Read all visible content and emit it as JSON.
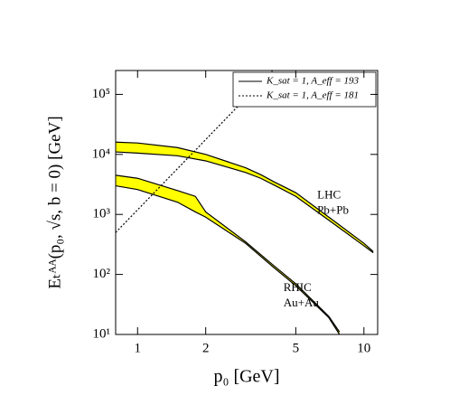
{
  "chart_data": {
    "type": "band",
    "x_label": "p₀ [GeV]",
    "y_label": "Eₜᴬᴬ(p₀, √s, b = 0) [GeV]",
    "log_x": true,
    "log_y": true,
    "xlim": [
      0.8,
      11.5
    ],
    "ylim": [
      10,
      250000
    ],
    "xticks": [
      1,
      2,
      5,
      10
    ],
    "yticks": [
      {
        "value": 10,
        "label": "10¹"
      },
      {
        "value": 100,
        "label": "10²"
      },
      {
        "value": 1000,
        "label": "10³"
      },
      {
        "value": 10000,
        "label": "10⁴"
      },
      {
        "value": 100000,
        "label": "10⁵"
      }
    ],
    "bands": [
      {
        "annotation": [
          "LHC",
          "Pb+Pb"
        ],
        "color": "#ffff00",
        "x": [
          0.8,
          1,
          1.5,
          2,
          3,
          3.5,
          4,
          5,
          7,
          10,
          11
        ],
        "upper": [
          16000,
          15500,
          13000,
          10000,
          6000,
          4600,
          3500,
          2300,
          900,
          330,
          240
        ],
        "lower": [
          11000,
          10500,
          9500,
          7800,
          5000,
          4000,
          3100,
          2000,
          800,
          300,
          230
        ]
      },
      {
        "annotation": [
          "RHIC",
          "Au+Au"
        ],
        "color": "#ffff00",
        "x": [
          0.8,
          1,
          1.5,
          1.8,
          2,
          3,
          4,
          5,
          7,
          7.8
        ],
        "upper": [
          4500,
          4000,
          2500,
          2000,
          1100,
          350,
          140,
          70,
          20,
          11
        ],
        "lower": [
          3000,
          2600,
          1600,
          1100,
          900,
          330,
          130,
          65,
          19,
          10
        ]
      }
    ],
    "series": [
      {
        "name": "K_sat = 1, A_eff = 193",
        "style": "solid",
        "x": [],
        "values": []
      },
      {
        "name": "K_sat = 1, A_eff = 181",
        "style": "dotted",
        "x": [
          0.8,
          3.95
        ],
        "values": [
          500,
          250000
        ]
      }
    ]
  }
}
